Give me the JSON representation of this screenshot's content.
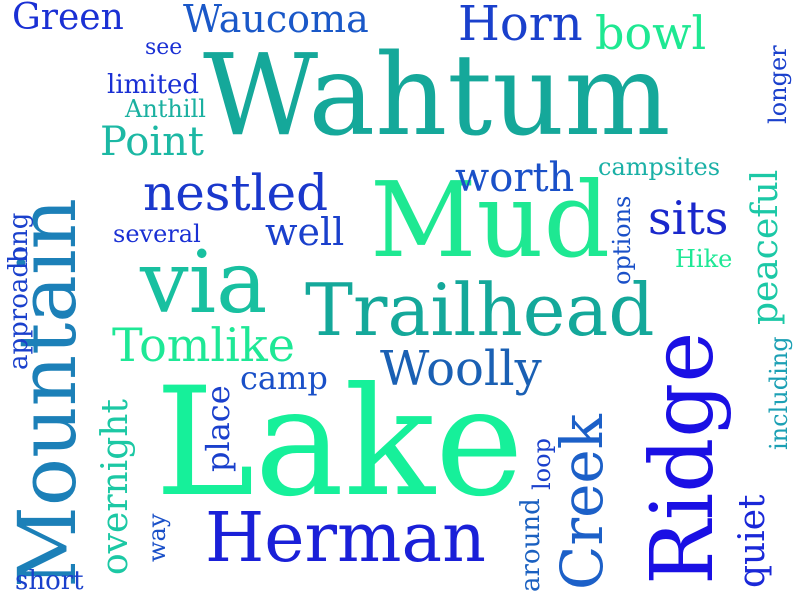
{
  "word_cloud": {
    "words": [
      {
        "text": "Wahtum",
        "color": "#15a89a"
      },
      {
        "text": "Lake",
        "color": "#16f09a"
      },
      {
        "text": "Mud",
        "color": "#1ee892"
      },
      {
        "text": "Mountain",
        "color": "#1c80b8"
      },
      {
        "text": "Ridge",
        "color": "#1a10e4"
      },
      {
        "text": "Trailhead",
        "color": "#14a89a"
      },
      {
        "text": "via",
        "color": "#18c0a0"
      },
      {
        "text": "Herman",
        "color": "#1a20d8"
      },
      {
        "text": "Creek",
        "color": "#1c60c8"
      },
      {
        "text": "nestled",
        "color": "#1a38cc"
      },
      {
        "text": "Woolly",
        "color": "#1a60b4"
      },
      {
        "text": "Horn",
        "color": "#1a40cc"
      },
      {
        "text": "Tomlike",
        "color": "#1ee896"
      },
      {
        "text": "sits",
        "color": "#1a28cc"
      },
      {
        "text": "bowl",
        "color": "#1ee892"
      },
      {
        "text": "Waucoma",
        "color": "#1a58c8"
      },
      {
        "text": "Green",
        "color": "#1a30d4"
      },
      {
        "text": "Point",
        "color": "#1cb8a4"
      },
      {
        "text": "worth",
        "color": "#1a50c8"
      },
      {
        "text": "well",
        "color": "#1a40cc"
      },
      {
        "text": "peaceful",
        "color": "#1cc8a6"
      },
      {
        "text": "quiet",
        "color": "#1a28d8"
      },
      {
        "text": "overnight",
        "color": "#1cc8a4"
      },
      {
        "text": "camp",
        "color": "#1a50c8"
      },
      {
        "text": "place",
        "color": "#1a40cc"
      },
      {
        "text": "Anthill",
        "color": "#1ab0a0"
      },
      {
        "text": "limited",
        "color": "#1a30d4"
      },
      {
        "text": "see",
        "color": "#1a30d4"
      },
      {
        "text": "campsites",
        "color": "#1ab0a6"
      },
      {
        "text": "Hike",
        "color": "#1ee896"
      },
      {
        "text": "options",
        "color": "#1a50c8"
      },
      {
        "text": "several",
        "color": "#1a30d4"
      },
      {
        "text": "including",
        "color": "#1ca0b4"
      },
      {
        "text": "longer",
        "color": "#1a40cc"
      },
      {
        "text": "long",
        "color": "#1a40cc"
      },
      {
        "text": "approach",
        "color": "#1a40cc"
      },
      {
        "text": "short",
        "color": "#1a40cc"
      },
      {
        "text": "way",
        "color": "#1a50c8"
      },
      {
        "text": "around",
        "color": "#1a60c0"
      },
      {
        "text": "loop",
        "color": "#1a40cc"
      }
    ]
  }
}
